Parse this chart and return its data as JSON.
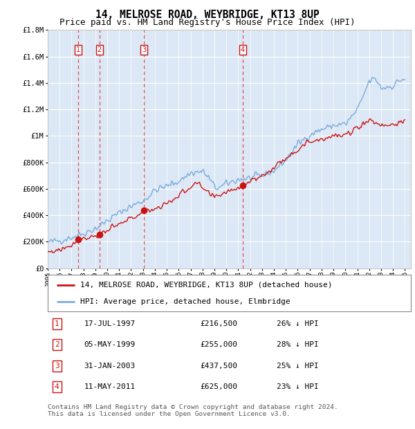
{
  "title": "14, MELROSE ROAD, WEYBRIDGE, KT13 8UP",
  "subtitle": "Price paid vs. HM Land Registry's House Price Index (HPI)",
  "ylim": [
    0,
    1800000
  ],
  "yticks": [
    0,
    200000,
    400000,
    600000,
    800000,
    1000000,
    1200000,
    1400000,
    1600000,
    1800000
  ],
  "ytick_labels": [
    "£0",
    "£200K",
    "£400K",
    "£600K",
    "£800K",
    "£1M",
    "£1.2M",
    "£1.4M",
    "£1.6M",
    "£1.8M"
  ],
  "xlim_start": 1995.0,
  "xlim_end": 2025.5,
  "transactions": [
    {
      "num": 1,
      "date": "17-JUL-1997",
      "year": 1997.54,
      "price": 216500,
      "pct": "26%",
      "direction": "↓"
    },
    {
      "num": 2,
      "date": "05-MAY-1999",
      "year": 1999.34,
      "price": 255000,
      "pct": "28%",
      "direction": "↓"
    },
    {
      "num": 3,
      "date": "31-JAN-2003",
      "year": 2003.08,
      "price": 437500,
      "pct": "25%",
      "direction": "↓"
    },
    {
      "num": 4,
      "date": "11-MAY-2011",
      "year": 2011.36,
      "price": 625000,
      "pct": "23%",
      "direction": "↓"
    }
  ],
  "red_color": "#cc1111",
  "blue_color": "#7aaadd",
  "dashed_color": "#dd3333",
  "marker_box_color": "#cc1111",
  "bg_color": "#dce8f5",
  "grid_color": "#ffffff",
  "legend_label_red": "14, MELROSE ROAD, WEYBRIDGE, KT13 8UP (detached house)",
  "legend_label_blue": "HPI: Average price, detached house, Elmbridge",
  "footer": "Contains HM Land Registry data © Crown copyright and database right 2024.\nThis data is licensed under the Open Government Licence v3.0.",
  "title_fontsize": 10.5,
  "subtitle_fontsize": 9,
  "axis_fontsize": 7.5,
  "legend_fontsize": 8,
  "table_fontsize": 8
}
